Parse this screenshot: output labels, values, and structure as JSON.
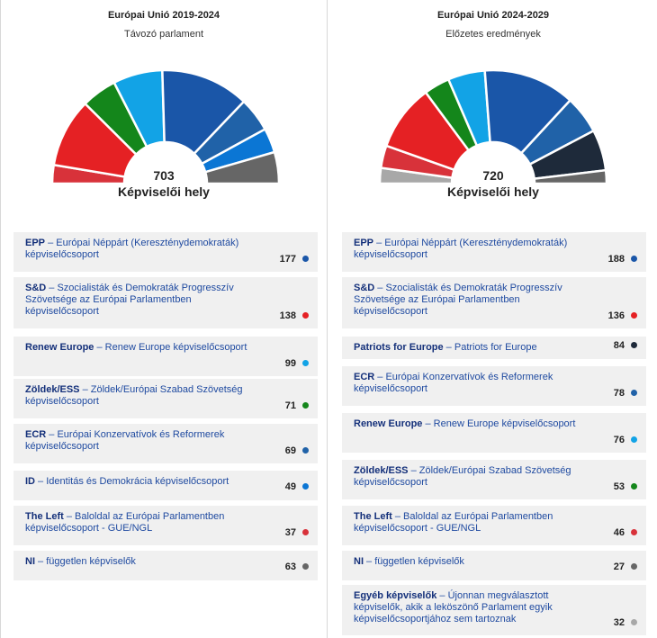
{
  "chart_data": [
    {
      "type": "pie",
      "title": "Európai Unió 2019-2024",
      "subtitle": "Távozó parlament",
      "total": "703",
      "total_label": "Képviselői hely",
      "series": [
        {
          "abbr": "EPP",
          "name": "Európai Néppárt (Kereszténydemokraták) képviselőcsoport",
          "value": 177,
          "color": "#1a56a8"
        },
        {
          "abbr": "S&D",
          "name": "Szocialisták és Demokraták Progresszív Szövetsége az Európai Parlamentben képviselőcsoport",
          "value": 138,
          "color": "#e52124"
        },
        {
          "abbr": "Renew Europe",
          "name": "Renew Europe képviselőcsoport",
          "value": 99,
          "color": "#12a3e6"
        },
        {
          "abbr": "Zöldek/ESS",
          "name": "Zöldek/Európai Szabad Szövetség képviselőcsoport",
          "value": 71,
          "color": "#14861b"
        },
        {
          "abbr": "ECR",
          "name": "Európai Konzervatívok és Reformerek képviselőcsoport",
          "value": 69,
          "color": "#2062a8"
        },
        {
          "abbr": "ID",
          "name": "Identitás és Demokrácia képviselőcsoport",
          "value": 49,
          "color": "#0b76d4"
        },
        {
          "abbr": "The Left",
          "name": "Baloldal az Európai Parlamentben képviselőcsoport - GUE/NGL",
          "value": 37,
          "color": "#d8323a"
        },
        {
          "abbr": "NI",
          "name": "független képviselők",
          "value": 63,
          "color": "#666666"
        }
      ],
      "arc_order": [
        "The Left",
        "S&D",
        "Zöldek/ESS",
        "Renew Europe",
        "EPP",
        "ECR",
        "ID",
        "NI"
      ]
    },
    {
      "type": "pie",
      "title": "Európai Unió 2024-2029",
      "subtitle": "Előzetes eredmények",
      "total": "720",
      "total_label": "Képviselői hely",
      "series": [
        {
          "abbr": "EPP",
          "name": "Európai Néppárt (Kereszténydemokraták) képviselőcsoport",
          "value": 188,
          "color": "#1a56a8"
        },
        {
          "abbr": "S&D",
          "name": "Szocialisták és Demokraták Progresszív Szövetsége az Európai Parlamentben képviselőcsoport",
          "value": 136,
          "color": "#e52124"
        },
        {
          "abbr": "Patriots for Europe",
          "name": "Patriots for Europe",
          "value": 84,
          "color": "#1e2a3a"
        },
        {
          "abbr": "ECR",
          "name": "Európai Konzervatívok és Reformerek képviselőcsoport",
          "value": 78,
          "color": "#2062a8"
        },
        {
          "abbr": "Renew Europe",
          "name": "Renew Europe képviselőcsoport",
          "value": 76,
          "color": "#12a3e6"
        },
        {
          "abbr": "Zöldek/ESS",
          "name": "Zöldek/Európai Szabad Szövetség képviselőcsoport",
          "value": 53,
          "color": "#14861b"
        },
        {
          "abbr": "The Left",
          "name": "Baloldal az Európai Parlamentben képviselőcsoport - GUE/NGL",
          "value": 46,
          "color": "#d8323a"
        },
        {
          "abbr": "NI",
          "name": "független képviselők",
          "value": 27,
          "color": "#666666"
        },
        {
          "abbr": "Egyéb képviselők",
          "name": "Újonnan megválasztott képviselők, akik a leköszönő Parlament egyik képviselőcsoportjához sem tartoznak",
          "value": 32,
          "color": "#a8a8a8"
        }
      ],
      "arc_order": [
        "Egyéb képviselők",
        "The Left",
        "S&D",
        "Zöldek/ESS",
        "Renew Europe",
        "EPP",
        "ECR",
        "Patriots for Europe",
        "NI"
      ]
    }
  ]
}
